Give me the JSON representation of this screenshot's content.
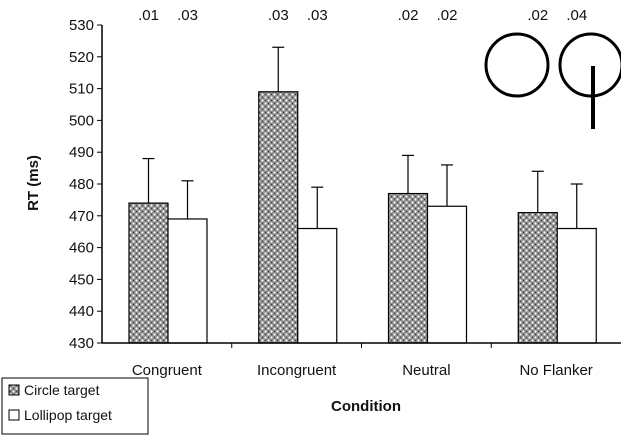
{
  "chart_data": {
    "type": "bar",
    "title": "",
    "xlabel": "Condition",
    "ylabel": "RT (ms)",
    "ylim": [
      430,
      530
    ],
    "ytick_step": 10,
    "grid": false,
    "legend_position": "bottom-left",
    "categories": [
      "Congruent",
      "Incongruent",
      "Neutral",
      "No Flanker"
    ],
    "series": [
      {
        "name": "Circle target",
        "pattern": "stipple",
        "fill_color": "#555555",
        "values": [
          474,
          509,
          477,
          471
        ],
        "error_upper": [
          488,
          523,
          489,
          484
        ],
        "top_labels": [
          ".01",
          ".03",
          ".02",
          ".02"
        ]
      },
      {
        "name": "Lollipop target",
        "pattern": "solid",
        "fill_color": "#ffffff",
        "values": [
          469,
          466,
          473,
          466
        ],
        "error_upper": [
          481,
          479,
          486,
          480
        ],
        "top_labels": [
          ".03",
          ".03",
          ".02",
          ".04"
        ]
      }
    ],
    "stimuli_icons": [
      "circle-stimulus-icon",
      "lollipop-stimulus-icon"
    ]
  }
}
